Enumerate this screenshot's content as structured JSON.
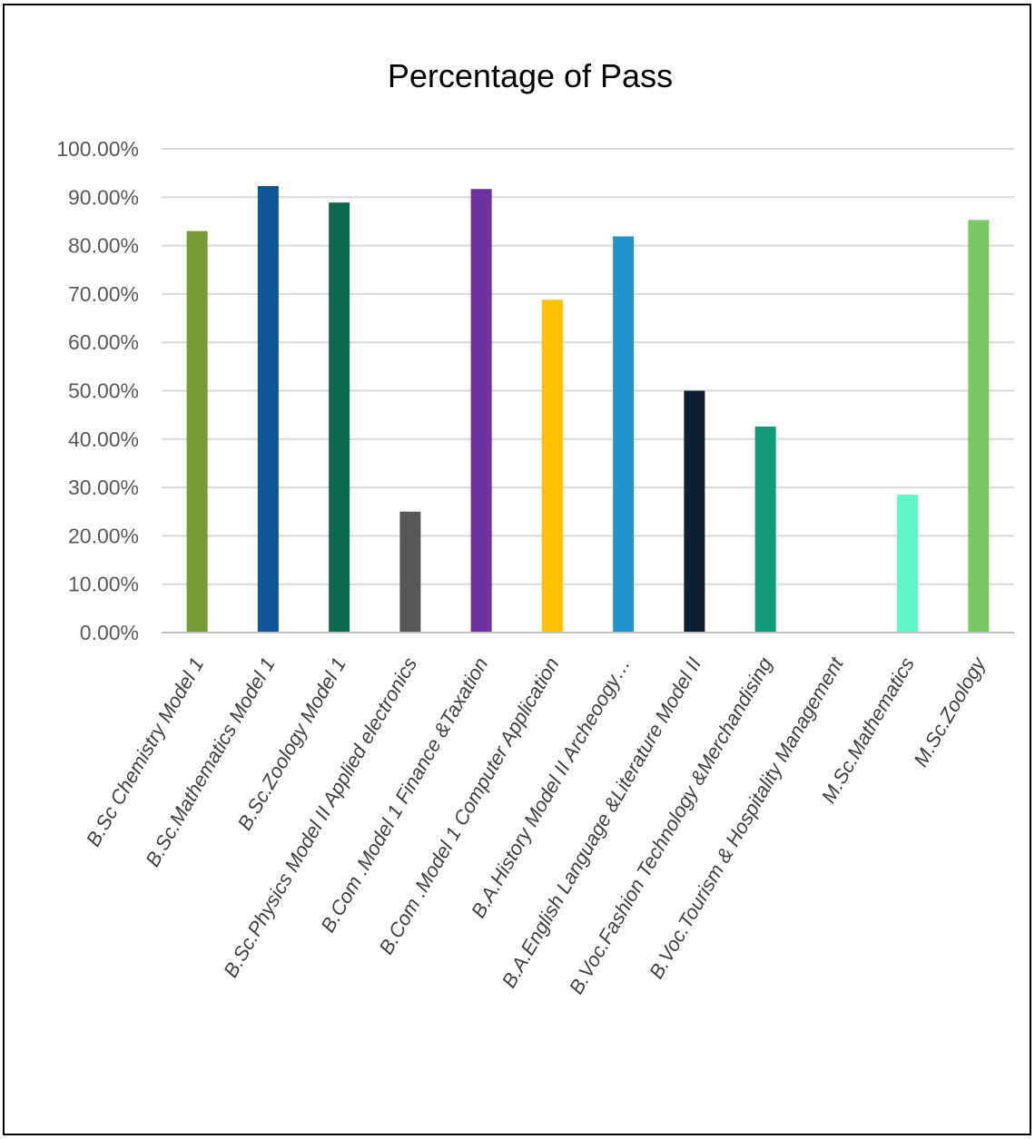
{
  "chart_data": {
    "type": "bar",
    "title": "Percentage of Pass",
    "xlabel": "",
    "ylabel": "",
    "ylim": [
      0,
      100
    ],
    "y_ticks": [
      "0.00%",
      "10.00%",
      "20.00%",
      "30.00%",
      "40.00%",
      "50.00%",
      "60.00%",
      "70.00%",
      "80.00%",
      "90.00%",
      "100.00%"
    ],
    "grid": true,
    "legend": "none",
    "categories": [
      "B.Sc Chemistry Model 1",
      "B.Sc.Mathematics Model 1",
      "B.Sc.Zoology Model 1",
      "B.Sc.Physics Model II Applied electronics",
      "B.Com .Model 1 Finance &Taxation",
      "B.Com .Model 1 Computer Application",
      "B.A.History Model II Archeoogy…",
      "B.A.English Language &Literature Model II",
      "B.Voc.Fashion Technology &Merchandising",
      "B.Voc.Tourism & Hospitality Management",
      "M.Sc.Mathematics",
      "M.Sc.Zoology"
    ],
    "values": [
      83.0,
      92.3,
      88.9,
      25.0,
      91.7,
      68.8,
      81.9,
      50.0,
      42.6,
      0.0,
      28.5,
      85.3
    ],
    "colors": [
      "#7a9a35",
      "#0f5496",
      "#0c6b4e",
      "#575757",
      "#7030a0",
      "#ffc000",
      "#2393cb",
      "#0f1f35",
      "#0f9a78",
      "#9fd1f5",
      "#5ff5c9",
      "#78c865"
    ]
  }
}
